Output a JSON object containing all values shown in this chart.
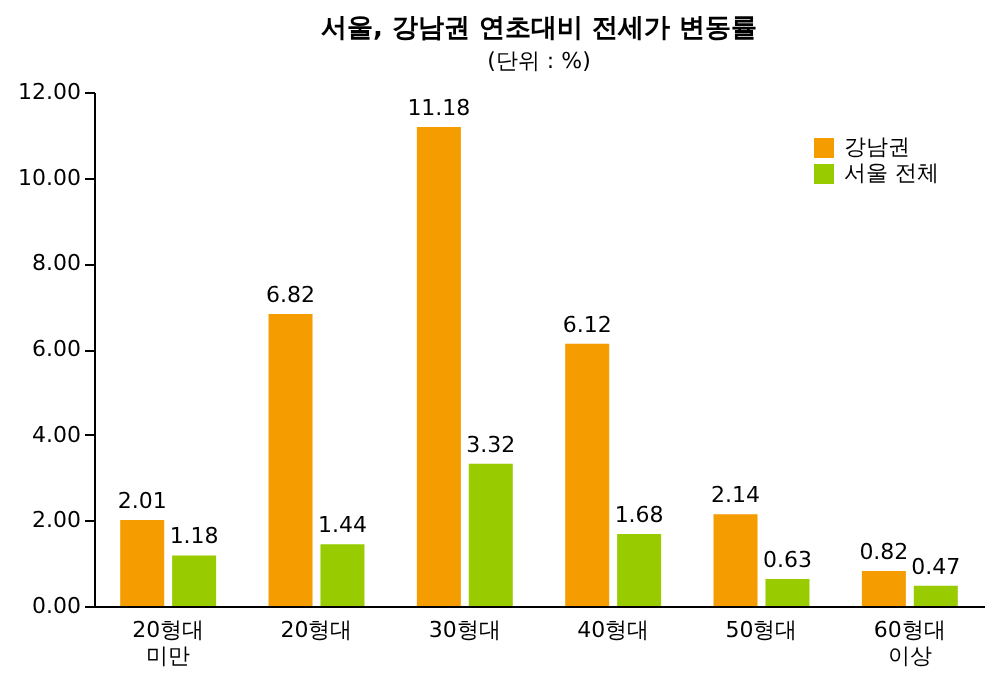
{
  "chart_data": {
    "type": "bar",
    "title": "서울, 강남권 연초대비 전세가 변동률",
    "annotations": [
      "(단위 : %)"
    ],
    "categories": [
      "20형대 미만",
      "20형대",
      "30형대",
      "40형대",
      "50형대",
      "60형대 이상"
    ],
    "series": [
      {
        "name": "강남권",
        "color": "#f59c00",
        "values": [
          2.01,
          6.82,
          11.18,
          6.12,
          2.14,
          0.82
        ]
      },
      {
        "name": "서울 전체",
        "color": "#99cc00",
        "values": [
          1.18,
          1.44,
          3.32,
          1.68,
          0.63,
          0.47
        ]
      }
    ],
    "ylim": [
      0,
      12
    ],
    "yticks": [
      {
        "value": 0,
        "label": "0.00"
      },
      {
        "value": 2,
        "label": "2.00"
      },
      {
        "value": 4,
        "label": "4.00"
      },
      {
        "value": 6,
        "label": "6.00"
      },
      {
        "value": 8,
        "label": "8.00"
      },
      {
        "value": 10,
        "label": "10.00"
      },
      {
        "value": 12,
        "label": "12.00"
      }
    ],
    "data_labels": true,
    "legend": "top right",
    "grid": false
  }
}
